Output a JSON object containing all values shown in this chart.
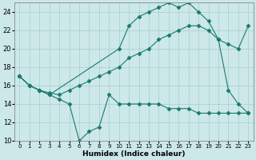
{
  "xlabel": "Humidex (Indice chaleur)",
  "background_color": "#cce8e8",
  "grid_color": "#b0d0d0",
  "line_color": "#1a7a6e",
  "xlim": [
    -0.5,
    23.5
  ],
  "ylim": [
    10,
    25
  ],
  "xticks": [
    0,
    1,
    2,
    3,
    4,
    5,
    6,
    7,
    8,
    9,
    10,
    11,
    12,
    13,
    14,
    15,
    16,
    17,
    18,
    19,
    20,
    21,
    22,
    23
  ],
  "yticks": [
    10,
    12,
    14,
    16,
    18,
    20,
    22,
    24
  ],
  "line1_x": [
    0,
    1,
    2,
    3,
    4,
    5,
    6,
    7,
    8,
    9,
    10,
    11,
    12,
    13,
    14,
    15,
    16,
    17,
    18,
    19,
    20,
    21,
    22,
    23
  ],
  "line1_y": [
    17.0,
    16.0,
    15.5,
    15.2,
    15.0,
    15.5,
    16.0,
    16.5,
    17.0,
    17.5,
    18.0,
    19.0,
    19.5,
    20.0,
    21.0,
    21.5,
    22.0,
    22.5,
    22.5,
    22.0,
    21.0,
    20.5,
    20.0,
    22.5
  ],
  "line2_x": [
    0,
    1,
    2,
    3,
    4,
    5,
    6,
    7,
    8,
    9,
    10,
    11,
    12,
    13,
    14,
    15,
    16,
    17,
    18,
    19,
    20,
    21,
    22,
    23
  ],
  "line2_y": [
    17.0,
    16.0,
    15.5,
    15.0,
    14.5,
    14.0,
    10.0,
    11.0,
    11.5,
    15.0,
    14.0,
    14.0,
    14.0,
    14.0,
    14.0,
    13.5,
    13.5,
    13.5,
    13.0,
    13.0,
    13.0,
    13.0,
    13.0,
    13.0
  ],
  "line3_x": [
    0,
    1,
    2,
    3,
    10,
    11,
    12,
    13,
    14,
    15,
    16,
    17,
    18,
    19,
    20,
    21,
    22,
    23
  ],
  "line3_y": [
    17.0,
    16.0,
    15.5,
    15.0,
    20.0,
    22.5,
    23.5,
    24.0,
    24.5,
    25.0,
    24.5,
    25.0,
    24.0,
    23.0,
    21.0,
    15.5,
    14.0,
    13.0
  ],
  "marker": "D",
  "marker_size": 2.5
}
